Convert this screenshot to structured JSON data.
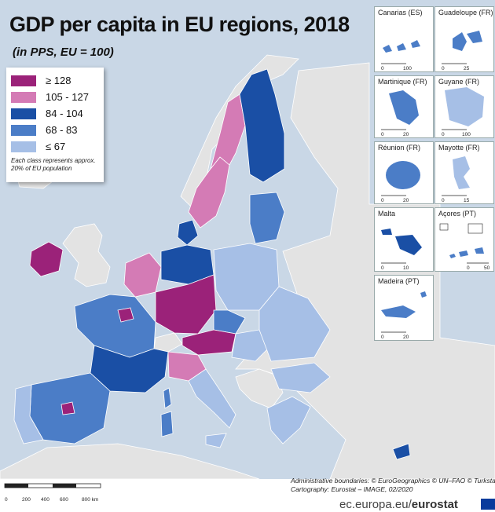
{
  "title": "GDP per capita in EU regions, 2018",
  "subtitle": "(in PPS, EU = 100)",
  "legend": {
    "classes": [
      {
        "label": "≥ 128",
        "color": "#9b2279"
      },
      {
        "label": "105 - 127",
        "color": "#d47bb5"
      },
      {
        "label": "84 - 104",
        "color": "#1a4fa5"
      },
      {
        "label": "68 - 83",
        "color": "#4b7dc7"
      },
      {
        "label": "≤ 67",
        "color": "#a6bfe6"
      }
    ],
    "note": "Each class represents approx. 20% of EU population"
  },
  "insets": [
    {
      "name": "Canarias (ES)",
      "scale": [
        "0",
        "100"
      ]
    },
    {
      "name": "Guadeloupe (FR)",
      "scale": [
        "0",
        "25"
      ]
    },
    {
      "name": "Martinique (FR)",
      "scale": [
        "0",
        "20"
      ]
    },
    {
      "name": "Guyane (FR)",
      "scale": [
        "0",
        "100"
      ]
    },
    {
      "name": "Réunion (FR)",
      "scale": [
        "0",
        "20"
      ]
    },
    {
      "name": "Mayotte (FR)",
      "scale": [
        "0",
        "15"
      ]
    },
    {
      "name": "Malta",
      "scale": [
        "0",
        "10"
      ]
    },
    {
      "name": "Açores (PT)",
      "scale": [
        "0",
        "50"
      ]
    },
    {
      "name": "Madeira (PT)",
      "scale": [
        "0",
        "20"
      ]
    }
  ],
  "scale_bar": {
    "ticks": [
      "0",
      "200",
      "400",
      "600",
      "800 km"
    ]
  },
  "credits": {
    "line1": "Administrative boundaries: © EuroGeographics © UN–FAO © Turkstat",
    "line2": "Cartography: Eurostat – IMAGE, 02/2020"
  },
  "source": {
    "prefix": "ec.europa.eu/",
    "brand": "eurostat"
  },
  "colors": {
    "sea": "#c9d7e6",
    "non_eu": "#e3e3e3",
    "border": "#ffffff"
  }
}
